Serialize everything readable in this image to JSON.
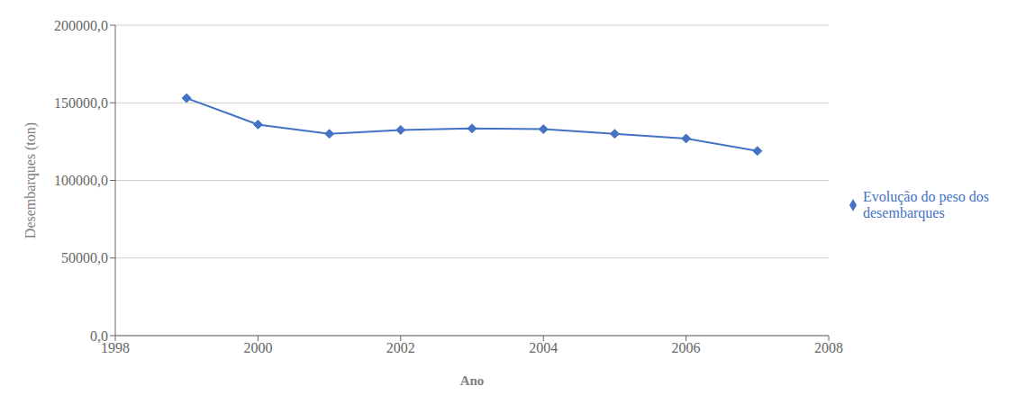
{
  "chart_data": {
    "type": "line",
    "x": [
      1999,
      2000,
      2001,
      2002,
      2003,
      2004,
      2005,
      2006,
      2007
    ],
    "series": [
      {
        "name": "Evolução do peso dos\ndesembarques",
        "color": "#4472C4",
        "marker": "diamond",
        "values": [
          153000,
          136000,
          130000,
          132500,
          133500,
          133000,
          130000,
          127000,
          119000
        ]
      }
    ],
    "xlabel": "Ano",
    "ylabel": "Desembarques (ton)",
    "xlim": [
      1998.0,
      2008.0
    ],
    "ylim": [
      0,
      200000
    ],
    "xticks": [
      1998,
      2000,
      2002,
      2004,
      2006,
      2008
    ],
    "yticks": [
      {
        "value": 0,
        "label": "0,0"
      },
      {
        "value": 50000,
        "label": "50000,0"
      },
      {
        "value": 100000,
        "label": "100000,0"
      },
      {
        "value": 150000,
        "label": "150000,0"
      },
      {
        "value": 200000,
        "label": "200000,0"
      }
    ],
    "grid": true,
    "legend": "right"
  }
}
